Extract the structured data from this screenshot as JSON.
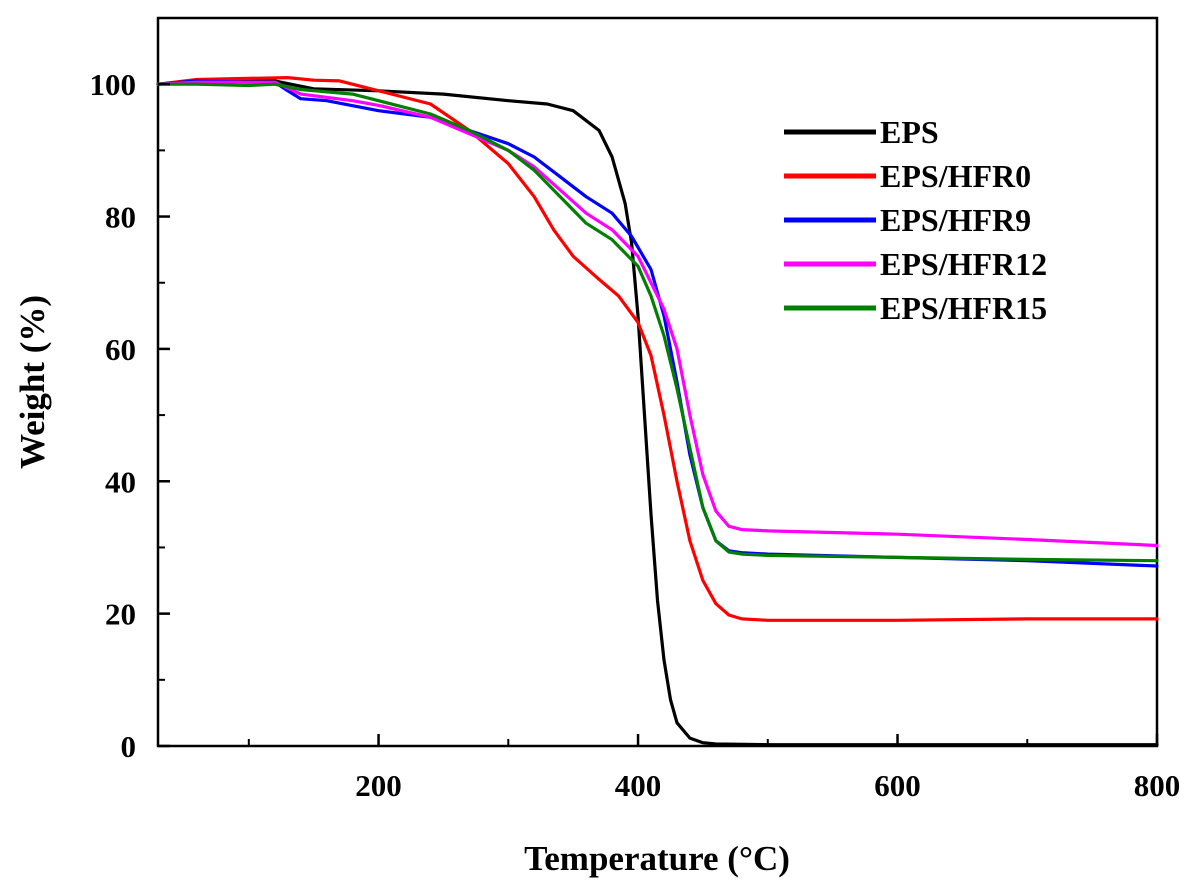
{
  "chart_data": {
    "type": "line",
    "title": "",
    "xlabel": "Temperature (°C)",
    "ylabel": "Weight (%)",
    "xlim": [
      30,
      800
    ],
    "ylim": [
      0,
      110
    ],
    "xticks": [
      200,
      400,
      600,
      800
    ],
    "xticks_minor": [
      100,
      300,
      500,
      700
    ],
    "yticks": [
      0,
      20,
      40,
      60,
      80,
      100
    ],
    "yticks_minor": [
      10,
      30,
      50,
      70,
      90
    ],
    "grid": false,
    "legend_position": "upper-right",
    "series": [
      {
        "name": "EPS",
        "color": "#000000",
        "points": [
          [
            30,
            100
          ],
          [
            60,
            100.5
          ],
          [
            120,
            100.5
          ],
          [
            150,
            99.3
          ],
          [
            200,
            99
          ],
          [
            250,
            98.5
          ],
          [
            300,
            97.5
          ],
          [
            330,
            97
          ],
          [
            350,
            96
          ],
          [
            370,
            93
          ],
          [
            380,
            89
          ],
          [
            390,
            82
          ],
          [
            395,
            76
          ],
          [
            400,
            65
          ],
          [
            405,
            50
          ],
          [
            410,
            35
          ],
          [
            415,
            22
          ],
          [
            420,
            13
          ],
          [
            425,
            7
          ],
          [
            430,
            3.5
          ],
          [
            440,
            1.2
          ],
          [
            450,
            0.5
          ],
          [
            460,
            0.3
          ],
          [
            500,
            0.2
          ],
          [
            600,
            0.2
          ],
          [
            700,
            0.2
          ],
          [
            800,
            0.2
          ]
        ]
      },
      {
        "name": "EPS/HFR0",
        "color": "#ff0000",
        "points": [
          [
            30,
            100
          ],
          [
            60,
            100.7
          ],
          [
            130,
            101
          ],
          [
            150,
            100.6
          ],
          [
            170,
            100.5
          ],
          [
            200,
            99
          ],
          [
            240,
            97
          ],
          [
            270,
            93
          ],
          [
            300,
            88
          ],
          [
            320,
            83
          ],
          [
            335,
            78
          ],
          [
            350,
            74
          ],
          [
            370,
            70.5
          ],
          [
            385,
            68
          ],
          [
            400,
            64
          ],
          [
            410,
            59
          ],
          [
            420,
            50
          ],
          [
            430,
            40
          ],
          [
            440,
            31
          ],
          [
            450,
            25
          ],
          [
            460,
            21.5
          ],
          [
            470,
            19.8
          ],
          [
            480,
            19.2
          ],
          [
            500,
            19
          ],
          [
            600,
            19
          ],
          [
            700,
            19.2
          ],
          [
            800,
            19.2
          ]
        ]
      },
      {
        "name": "EPS/HFR9",
        "color": "#0000ff",
        "points": [
          [
            30,
            100
          ],
          [
            60,
            100.5
          ],
          [
            100,
            100.3
          ],
          [
            120,
            100.3
          ],
          [
            130,
            99
          ],
          [
            140,
            97.8
          ],
          [
            160,
            97.5
          ],
          [
            200,
            96
          ],
          [
            240,
            95
          ],
          [
            270,
            93
          ],
          [
            300,
            91
          ],
          [
            320,
            89
          ],
          [
            340,
            86
          ],
          [
            360,
            83
          ],
          [
            380,
            80.5
          ],
          [
            395,
            77
          ],
          [
            410,
            72
          ],
          [
            420,
            65
          ],
          [
            430,
            55
          ],
          [
            440,
            44
          ],
          [
            450,
            36
          ],
          [
            460,
            31
          ],
          [
            470,
            29.5
          ],
          [
            480,
            29.2
          ],
          [
            500,
            29
          ],
          [
            600,
            28.5
          ],
          [
            700,
            28
          ],
          [
            800,
            27.2
          ]
        ]
      },
      {
        "name": "EPS/HFR12",
        "color": "#ff00ff",
        "points": [
          [
            30,
            100
          ],
          [
            60,
            100.3
          ],
          [
            120,
            100.3
          ],
          [
            140,
            98.5
          ],
          [
            180,
            97.5
          ],
          [
            200,
            96.8
          ],
          [
            240,
            95
          ],
          [
            270,
            92.5
          ],
          [
            300,
            90
          ],
          [
            320,
            87.5
          ],
          [
            340,
            84
          ],
          [
            360,
            80.5
          ],
          [
            380,
            78
          ],
          [
            400,
            74
          ],
          [
            410,
            70
          ],
          [
            420,
            66
          ],
          [
            430,
            60
          ],
          [
            440,
            50
          ],
          [
            450,
            41
          ],
          [
            460,
            35.5
          ],
          [
            470,
            33.2
          ],
          [
            480,
            32.7
          ],
          [
            500,
            32.5
          ],
          [
            600,
            32
          ],
          [
            700,
            31.2
          ],
          [
            800,
            30.3
          ]
        ]
      },
      {
        "name": "EPS/HFR15",
        "color": "#008000",
        "points": [
          [
            30,
            100
          ],
          [
            60,
            100
          ],
          [
            100,
            99.8
          ],
          [
            120,
            100
          ],
          [
            140,
            99.2
          ],
          [
            180,
            98.5
          ],
          [
            200,
            97.5
          ],
          [
            240,
            95.5
          ],
          [
            270,
            93
          ],
          [
            300,
            90
          ],
          [
            320,
            87
          ],
          [
            340,
            83
          ],
          [
            360,
            79
          ],
          [
            380,
            76.5
          ],
          [
            400,
            72.5
          ],
          [
            410,
            68
          ],
          [
            420,
            62
          ],
          [
            430,
            54
          ],
          [
            440,
            45
          ],
          [
            450,
            36
          ],
          [
            460,
            31
          ],
          [
            470,
            29.3
          ],
          [
            480,
            29
          ],
          [
            500,
            28.8
          ],
          [
            600,
            28.5
          ],
          [
            700,
            28.2
          ],
          [
            800,
            28
          ]
        ]
      }
    ]
  }
}
